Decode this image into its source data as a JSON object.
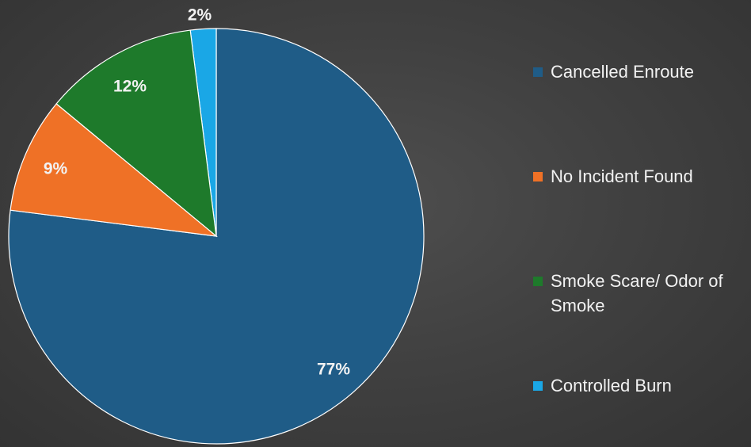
{
  "chart_data": {
    "type": "pie",
    "categories": [
      "Cancelled Enroute",
      "No Incident Found",
      "Smoke Scare/ Odor of Smoke",
      "Controlled Burn"
    ],
    "values": [
      77,
      9,
      12,
      2
    ],
    "data_labels": [
      "77%",
      "9%",
      "12%",
      "2%"
    ],
    "colors": [
      "#1f5c87",
      "#ef7126",
      "#1e7a2b",
      "#1aa7e6"
    ],
    "legend_position": "right",
    "title": ""
  }
}
